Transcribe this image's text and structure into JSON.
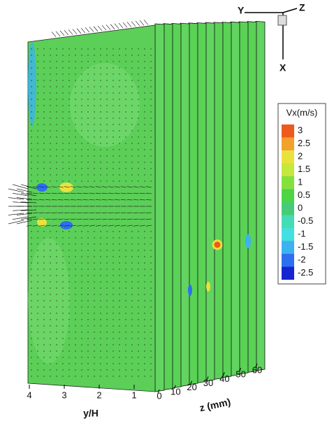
{
  "chart_data": {
    "type": "contour3d",
    "triad_labels": [
      "Y",
      "Z",
      "X"
    ],
    "xlabel": "y/H",
    "xlim": [
      4.04,
      0.4
    ],
    "xticks": [
      4,
      3,
      2,
      1
    ],
    "zlabel": "z (mm)",
    "zlim": [
      0,
      60
    ],
    "zticks": [
      0,
      10,
      20,
      30,
      40,
      50,
      60
    ],
    "colorbar": {
      "title": "Vx(m/s)",
      "levels": [
        3,
        2.5,
        2,
        1.5,
        1,
        0.5,
        0,
        -0.5,
        -1,
        -1.5,
        -2,
        -2.5
      ],
      "colors": [
        "#ee5a1e",
        "#f4a02c",
        "#e9e23e",
        "#c4e83e",
        "#86e03c",
        "#4ed444",
        "#46cc78",
        "#44dcb4",
        "#44e0e0",
        "#3cb2f0",
        "#2e6ef0",
        "#1424d0"
      ]
    }
  }
}
